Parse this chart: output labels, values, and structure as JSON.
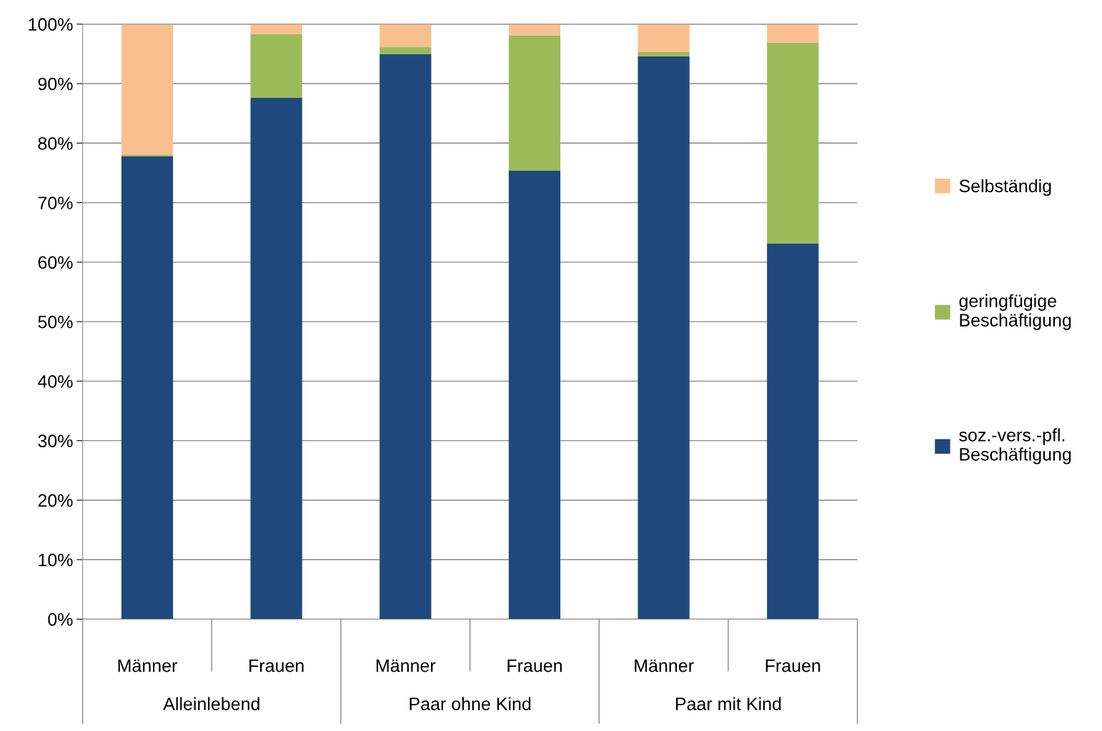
{
  "chart_data": {
    "type": "bar",
    "stacked": true,
    "categories": [
      "Männer",
      "Frauen",
      "Männer",
      "Frauen",
      "Männer",
      "Frauen"
    ],
    "annotations": [
      "Alleinlebend",
      "Paar ohne Kind",
      "Paar mit Kind"
    ],
    "series": [
      {
        "name": "soz.-vers.-pfl. Beschäftigung",
        "color": "#1f497d",
        "values": [
          77.8,
          87.6,
          95.0,
          75.4,
          94.6,
          63.1
        ]
      },
      {
        "name": "geringfügige Beschäftigung",
        "color": "#9bbb59",
        "values": [
          0.2,
          10.7,
          1.2,
          22.7,
          0.7,
          33.8
        ]
      },
      {
        "name": "Selbständig",
        "color": "#fac090",
        "values": [
          22.0,
          1.7,
          3.8,
          1.9,
          4.7,
          3.1
        ]
      }
    ],
    "ylim": [
      0,
      100
    ],
    "yticks": [
      {
        "value": 0,
        "label": "0%"
      },
      {
        "value": 10,
        "label": "10%"
      },
      {
        "value": 20,
        "label": "20%"
      },
      {
        "value": 30,
        "label": "30%"
      },
      {
        "value": 40,
        "label": "40%"
      },
      {
        "value": 50,
        "label": "50%"
      },
      {
        "value": 60,
        "label": "60%"
      },
      {
        "value": 70,
        "label": "70%"
      },
      {
        "value": 80,
        "label": "80%"
      },
      {
        "value": 90,
        "label": "90%"
      },
      {
        "value": 100,
        "label": "100%"
      }
    ],
    "grid": "y",
    "legend": "right"
  }
}
